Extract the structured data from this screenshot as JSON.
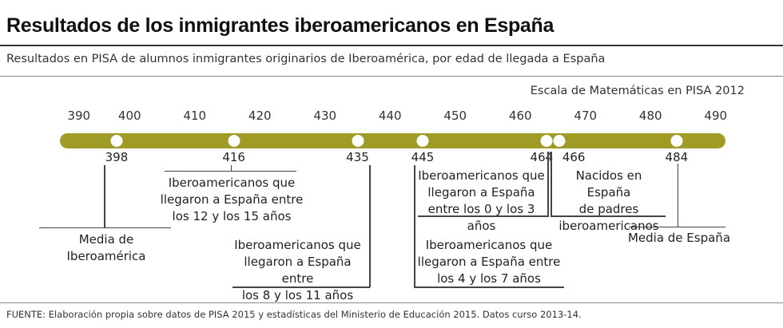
{
  "chart_data": {
    "type": "scatter",
    "title": "Resultados de los inmigrantes iberoamericanos en España",
    "subtitle": "Resultados en PISA de alumnos inmigrantes originarios de Iberoamérica, por edad de llegada a España",
    "axis_label": "Escala de Matemáticas en PISA 2012",
    "xlim": [
      390,
      490
    ],
    "ticks": [
      "390",
      "400",
      "410",
      "420",
      "430",
      "440",
      "450",
      "460",
      "470",
      "480",
      "490"
    ],
    "points": [
      {
        "value": 398,
        "label": "Media de Iberoamérica"
      },
      {
        "value": 416,
        "label": "Iberoamericanos que llegaron a España entre los 12 y los 15 años"
      },
      {
        "value": 435,
        "label": "Iberoamericanos que llegaron a España entre los 8 y los 11 años"
      },
      {
        "value": 445,
        "label": "Iberoamericanos que llegaron a España entre los 4 y los 7 años"
      },
      {
        "value": 464,
        "label": "Iberoamericanos que llegaron a España entre los 0 y los 3 años"
      },
      {
        "value": 466,
        "label": "Nacidos en España de padres iberoamericanos"
      },
      {
        "value": 484,
        "label": "Media de España"
      }
    ],
    "bar_color": "#9e9c25"
  },
  "labels": {
    "l398": [
      "Media de Iberoamérica"
    ],
    "l416": [
      "Iberoamericanos que",
      "llegaron a España entre",
      "los 12 y los 15 años"
    ],
    "l435": [
      "Iberoamericanos que",
      "llegaron a España entre",
      "los 8 y los 11 años"
    ],
    "l445": [
      "Iberoamericanos que",
      "llegaron a España entre",
      "los 4 y los 7 años"
    ],
    "l464": [
      "Iberoamericanos que",
      "llegaron a España",
      "entre los 0 y los 3 años"
    ],
    "l466": [
      "Nacidos en España",
      "de padres",
      "iberoamericanos"
    ],
    "l484": [
      "Media de España"
    ]
  },
  "footer": "FUENTE: Elaboración propia sobre datos de PISA 2015 y estadísticas del Ministerio de Educación 2015. Datos curso 2013-14."
}
